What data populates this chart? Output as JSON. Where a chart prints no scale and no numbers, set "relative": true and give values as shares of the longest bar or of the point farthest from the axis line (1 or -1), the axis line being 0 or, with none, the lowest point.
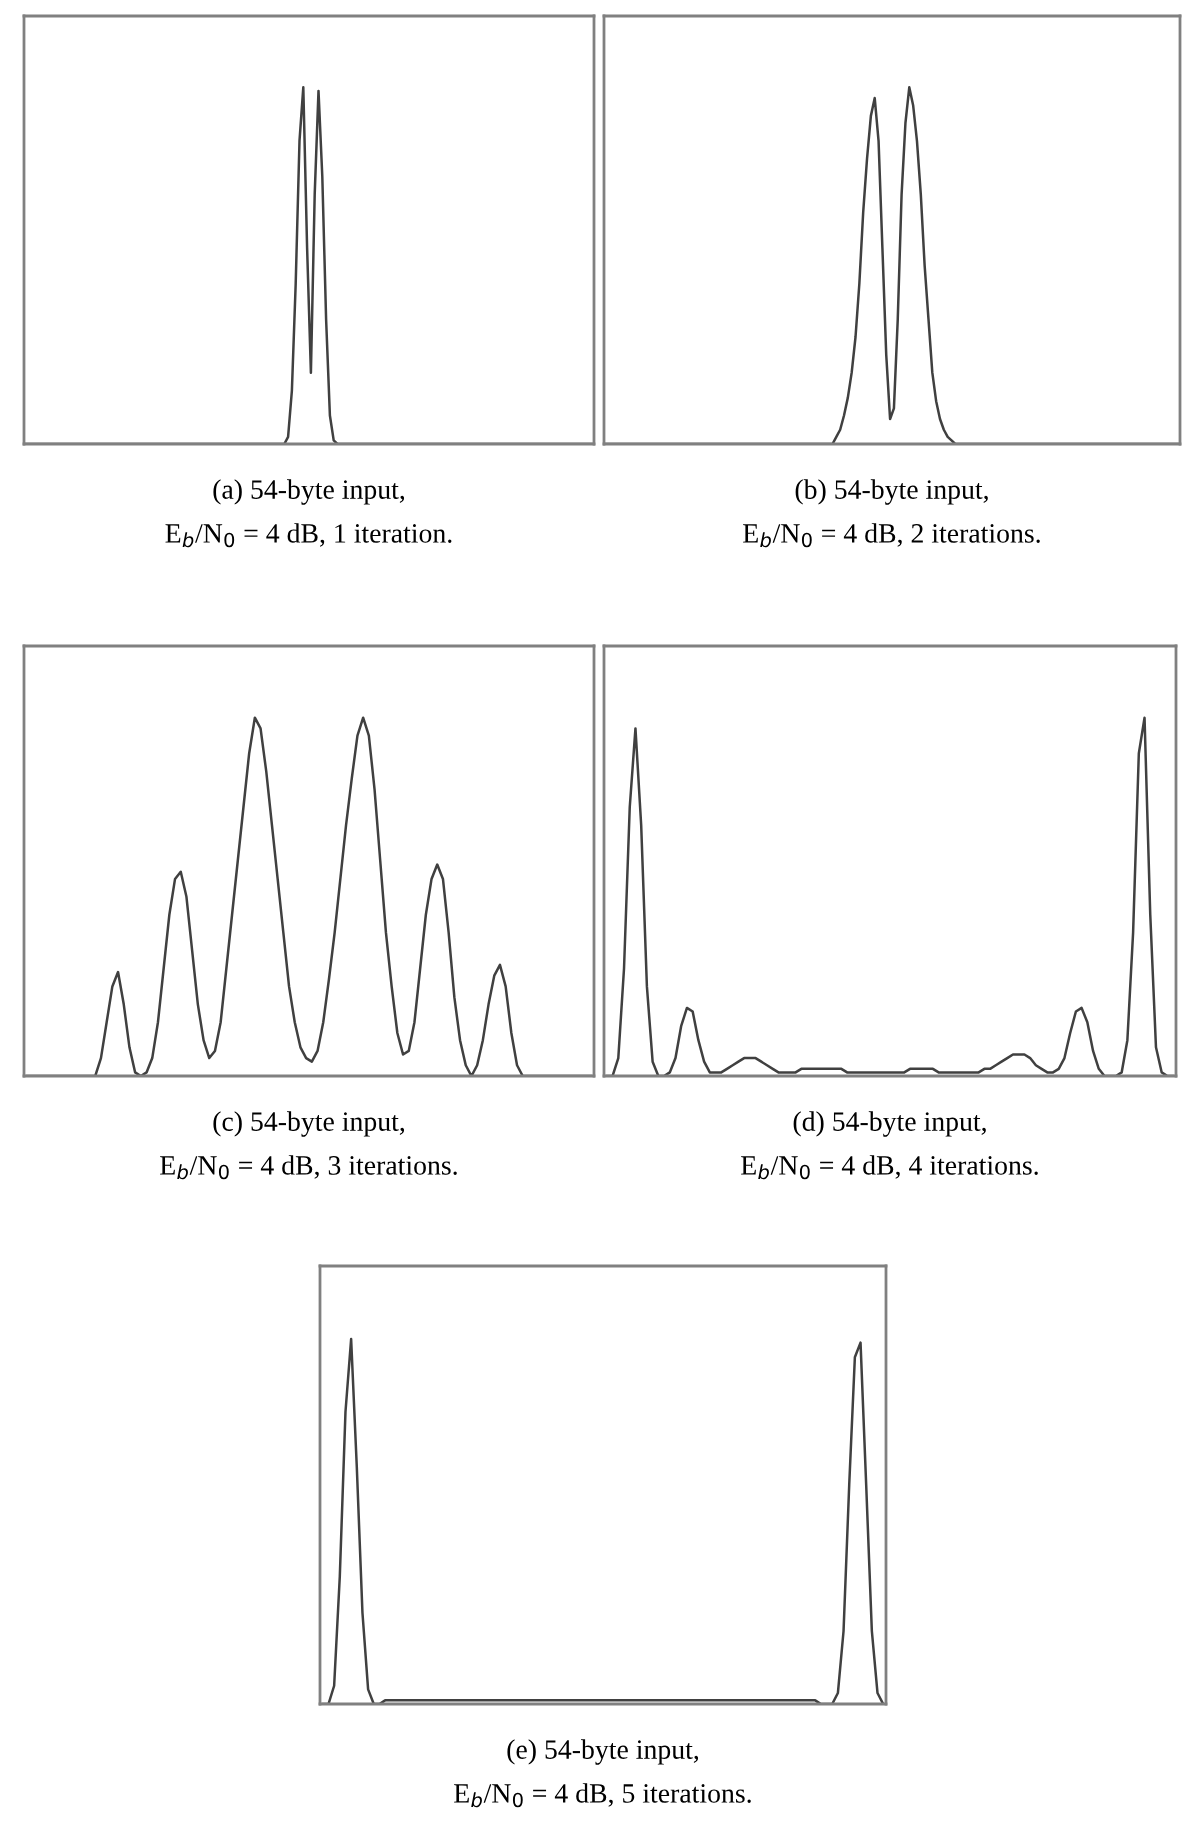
{
  "chart_data": [
    {
      "type": "line",
      "relative": true,
      "tick_labels": false,
      "title": "(a) 54-byte input,",
      "subtitle": "E$_{b}$/N$_{0}$ = 4 dB, 1 iteration.",
      "categories": [
        null,
        null,
        null,
        null,
        null,
        null,
        null,
        null,
        null,
        null,
        null,
        null,
        null,
        null,
        null,
        null,
        null,
        null,
        null,
        null,
        null,
        null,
        null,
        null,
        null,
        null,
        null,
        null,
        null,
        null,
        null,
        null,
        null,
        null,
        null,
        null,
        null,
        null,
        null,
        null,
        null,
        null,
        null,
        null,
        null,
        null,
        null,
        null,
        null,
        null,
        null,
        null,
        null,
        null,
        null,
        null,
        null,
        null,
        null,
        null,
        null,
        null,
        null,
        null,
        null,
        null,
        null,
        null,
        null,
        null,
        null,
        null,
        null,
        null,
        null,
        null,
        null,
        null,
        null,
        null,
        null,
        null,
        null,
        null,
        null,
        null,
        null,
        null,
        null,
        null,
        null,
        null,
        null,
        null,
        null,
        null,
        null,
        null,
        null,
        null,
        null,
        null,
        null,
        null,
        null,
        null,
        null,
        null,
        null,
        null,
        null,
        null,
        null,
        null,
        null,
        null,
        null,
        null,
        null,
        null,
        null,
        null,
        null,
        null,
        null,
        null,
        null,
        null,
        null,
        null,
        null,
        null,
        null,
        null,
        null,
        null,
        null,
        null,
        null,
        null,
        null,
        null,
        null,
        null,
        null,
        null,
        null,
        null,
        null,
        null
      ],
      "series": [
        {
          "color": "#404040",
          "values": [
            0,
            0,
            0,
            0,
            0,
            0,
            0,
            0,
            0,
            0,
            0,
            0,
            0,
            0,
            0,
            0,
            0,
            0,
            0,
            0,
            0,
            0,
            0,
            0,
            0,
            0,
            0,
            0,
            0,
            0,
            0,
            0,
            0,
            0,
            0,
            0,
            0,
            0,
            0,
            0,
            0,
            0,
            0,
            0,
            0,
            0,
            0,
            0,
            0,
            0,
            0,
            0,
            0,
            0,
            0,
            0,
            0,
            0,
            0,
            0,
            0,
            0,
            0,
            0,
            0,
            0,
            0,
            0,
            0,
            0.02,
            0.15,
            0.45,
            0.85,
            1.0,
            0.55,
            0.2,
            0.7,
            0.99,
            0.75,
            0.35,
            0.08,
            0.01,
            0,
            0,
            0,
            0,
            0,
            0,
            0,
            0,
            0,
            0,
            0,
            0,
            0,
            0,
            0,
            0,
            0,
            0,
            0,
            0,
            0,
            0,
            0,
            0,
            0,
            0,
            0,
            0,
            0,
            0,
            0,
            0,
            0,
            0,
            0,
            0,
            0,
            0,
            0,
            0,
            0,
            0,
            0,
            0,
            0,
            0,
            0,
            0,
            0,
            0,
            0,
            0,
            0,
            0,
            0,
            0,
            0,
            0,
            0,
            0,
            0,
            0,
            0,
            0,
            0,
            0,
            0,
            0
          ]
        }
      ]
    },
    {
      "type": "line",
      "relative": true,
      "tick_labels": false,
      "title": "(b) 54-byte input,",
      "subtitle": "E$_{b}$/N$_{0}$ = 4 dB, 2 iterations.",
      "categories": [
        null,
        null,
        null,
        null,
        null,
        null,
        null,
        null,
        null,
        null,
        null,
        null,
        null,
        null,
        null,
        null,
        null,
        null,
        null,
        null,
        null,
        null,
        null,
        null,
        null,
        null,
        null,
        null,
        null,
        null,
        null,
        null,
        null,
        null,
        null,
        null,
        null,
        null,
        null,
        null,
        null,
        null,
        null,
        null,
        null,
        null,
        null,
        null,
        null,
        null,
        null,
        null,
        null,
        null,
        null,
        null,
        null,
        null,
        null,
        null,
        null,
        null,
        null,
        null,
        null,
        null,
        null,
        null,
        null,
        null,
        null,
        null,
        null,
        null,
        null,
        null,
        null,
        null,
        null,
        null,
        null,
        null,
        null,
        null,
        null,
        null,
        null,
        null,
        null,
        null,
        null,
        null,
        null,
        null,
        null,
        null,
        null,
        null,
        null,
        null,
        null,
        null,
        null,
        null,
        null,
        null,
        null,
        null,
        null,
        null,
        null,
        null,
        null,
        null,
        null,
        null,
        null,
        null,
        null,
        null,
        null,
        null,
        null,
        null,
        null,
        null,
        null,
        null,
        null,
        null,
        null,
        null,
        null,
        null,
        null,
        null,
        null,
        null,
        null,
        null,
        null,
        null,
        null,
        null,
        null,
        null,
        null,
        null,
        null,
        null
      ],
      "series": [
        {
          "color": "#404040",
          "values": [
            0,
            0,
            0,
            0,
            0,
            0,
            0,
            0,
            0,
            0,
            0,
            0,
            0,
            0,
            0,
            0,
            0,
            0,
            0,
            0,
            0,
            0,
            0,
            0,
            0,
            0,
            0,
            0,
            0,
            0,
            0,
            0,
            0,
            0,
            0,
            0,
            0,
            0,
            0,
            0,
            0,
            0,
            0,
            0,
            0,
            0,
            0,
            0,
            0,
            0,
            0,
            0,
            0,
            0,
            0,
            0,
            0,
            0,
            0,
            0,
            0.02,
            0.04,
            0.08,
            0.13,
            0.2,
            0.3,
            0.45,
            0.65,
            0.8,
            0.92,
            0.97,
            0.85,
            0.55,
            0.25,
            0.07,
            0.1,
            0.35,
            0.7,
            0.9,
            1.0,
            0.95,
            0.85,
            0.7,
            0.5,
            0.35,
            0.2,
            0.12,
            0.07,
            0.04,
            0.02,
            0.01,
            0,
            0,
            0,
            0,
            0,
            0,
            0,
            0,
            0,
            0,
            0,
            0,
            0,
            0,
            0,
            0,
            0,
            0,
            0,
            0,
            0,
            0,
            0,
            0,
            0,
            0,
            0,
            0,
            0,
            0,
            0,
            0,
            0,
            0,
            0,
            0,
            0,
            0,
            0,
            0,
            0,
            0,
            0,
            0,
            0,
            0,
            0,
            0,
            0,
            0,
            0,
            0,
            0,
            0,
            0,
            0,
            0,
            0,
            0
          ]
        }
      ]
    },
    {
      "type": "line",
      "relative": true,
      "tick_labels": false,
      "title": "(c) 54-byte input,",
      "subtitle": "E$_{b}$/N$_{0}$ = 4 dB, 3 iterations.",
      "categories": [
        null,
        null,
        null,
        null,
        null,
        null,
        null,
        null,
        null,
        null,
        null,
        null,
        null,
        null,
        null,
        null,
        null,
        null,
        null,
        null,
        null,
        null,
        null,
        null,
        null,
        null,
        null,
        null,
        null,
        null,
        null,
        null,
        null,
        null,
        null,
        null,
        null,
        null,
        null,
        null,
        null,
        null,
        null,
        null,
        null,
        null,
        null,
        null,
        null,
        null,
        null,
        null,
        null,
        null,
        null,
        null,
        null,
        null,
        null,
        null,
        null,
        null,
        null,
        null,
        null,
        null,
        null,
        null,
        null,
        null,
        null,
        null,
        null,
        null,
        null,
        null,
        null,
        null,
        null,
        null,
        null,
        null,
        null,
        null,
        null,
        null,
        null,
        null,
        null,
        null,
        null,
        null,
        null,
        null,
        null,
        null,
        null,
        null,
        null,
        null
      ],
      "series": [
        {
          "color": "#404040",
          "values": [
            0,
            0,
            0,
            0,
            0,
            0,
            0,
            0,
            0,
            0,
            0,
            0,
            0,
            0.05,
            0.15,
            0.25,
            0.29,
            0.2,
            0.08,
            0.01,
            0,
            0.01,
            0.05,
            0.15,
            0.3,
            0.45,
            0.55,
            0.57,
            0.5,
            0.35,
            0.2,
            0.1,
            0.05,
            0.07,
            0.15,
            0.3,
            0.45,
            0.6,
            0.75,
            0.9,
            1.0,
            0.97,
            0.85,
            0.7,
            0.55,
            0.4,
            0.25,
            0.15,
            0.08,
            0.05,
            0.04,
            0.07,
            0.15,
            0.27,
            0.4,
            0.55,
            0.7,
            0.83,
            0.95,
            1.0,
            0.95,
            0.8,
            0.6,
            0.4,
            0.25,
            0.12,
            0.06,
            0.07,
            0.15,
            0.3,
            0.45,
            0.55,
            0.59,
            0.55,
            0.4,
            0.22,
            0.1,
            0.03,
            0,
            0.03,
            0.1,
            0.2,
            0.28,
            0.31,
            0.25,
            0.12,
            0.03,
            0,
            0,
            0,
            0,
            0,
            0,
            0,
            0,
            0,
            0,
            0,
            0,
            0
          ]
        }
      ]
    },
    {
      "type": "line",
      "relative": true,
      "tick_labels": false,
      "title": "(d) 54-byte input,",
      "subtitle": "E$_{b}$/N$_{0}$ = 4 dB, 4 iterations.",
      "categories": [
        null,
        null,
        null,
        null,
        null,
        null,
        null,
        null,
        null,
        null,
        null,
        null,
        null,
        null,
        null,
        null,
        null,
        null,
        null,
        null,
        null,
        null,
        null,
        null,
        null,
        null,
        null,
        null,
        null,
        null,
        null,
        null,
        null,
        null,
        null,
        null,
        null,
        null,
        null,
        null,
        null,
        null,
        null,
        null,
        null,
        null,
        null,
        null,
        null,
        null,
        null,
        null,
        null,
        null,
        null,
        null,
        null,
        null,
        null,
        null,
        null,
        null,
        null,
        null,
        null,
        null,
        null,
        null,
        null,
        null,
        null,
        null,
        null,
        null,
        null,
        null,
        null,
        null,
        null,
        null,
        null,
        null,
        null,
        null,
        null,
        null,
        null,
        null,
        null,
        null,
        null,
        null,
        null,
        null,
        null,
        null,
        null,
        null,
        null,
        null
      ],
      "series": [
        {
          "color": "#404040",
          "values": [
            0,
            0,
            0.05,
            0.3,
            0.75,
            0.97,
            0.7,
            0.25,
            0.04,
            0,
            0,
            0.01,
            0.05,
            0.14,
            0.19,
            0.18,
            0.1,
            0.04,
            0.01,
            0.01,
            0.01,
            0.02,
            0.03,
            0.04,
            0.05,
            0.05,
            0.05,
            0.04,
            0.03,
            0.02,
            0.01,
            0.01,
            0.01,
            0.01,
            0.02,
            0.02,
            0.02,
            0.02,
            0.02,
            0.02,
            0.02,
            0.02,
            0.01,
            0.01,
            0.01,
            0.01,
            0.01,
            0.01,
            0.01,
            0.01,
            0.01,
            0.01,
            0.01,
            0.02,
            0.02,
            0.02,
            0.02,
            0.02,
            0.01,
            0.01,
            0.01,
            0.01,
            0.01,
            0.01,
            0.01,
            0.01,
            0.02,
            0.02,
            0.03,
            0.04,
            0.05,
            0.06,
            0.06,
            0.06,
            0.05,
            0.03,
            0.02,
            0.01,
            0.01,
            0.02,
            0.05,
            0.12,
            0.18,
            0.19,
            0.15,
            0.07,
            0.02,
            0,
            0,
            0,
            0.01,
            0.1,
            0.4,
            0.9,
            1.0,
            0.45,
            0.08,
            0.01,
            0,
            0
          ]
        }
      ]
    },
    {
      "type": "line",
      "relative": true,
      "tick_labels": false,
      "title": "(e) 54-byte input,",
      "subtitle": "E$_{b}$/N$_{0}$ = 4 dB, 5 iterations.",
      "categories": [
        null,
        null,
        null,
        null,
        null,
        null,
        null,
        null,
        null,
        null,
        null,
        null,
        null,
        null,
        null,
        null,
        null,
        null,
        null,
        null,
        null,
        null,
        null,
        null,
        null,
        null,
        null,
        null,
        null,
        null,
        null,
        null,
        null,
        null,
        null,
        null,
        null,
        null,
        null,
        null,
        null,
        null,
        null,
        null,
        null,
        null,
        null,
        null,
        null,
        null,
        null,
        null,
        null,
        null,
        null,
        null,
        null,
        null,
        null,
        null,
        null,
        null,
        null,
        null,
        null,
        null,
        null,
        null,
        null,
        null,
        null,
        null,
        null,
        null,
        null,
        null,
        null,
        null,
        null,
        null,
        null,
        null,
        null,
        null,
        null,
        null,
        null,
        null,
        null,
        null,
        null,
        null,
        null,
        null,
        null,
        null,
        null,
        null,
        null,
        null
      ],
      "series": [
        {
          "color": "#404040",
          "values": [
            0,
            0,
            0.05,
            0.35,
            0.8,
            1.0,
            0.65,
            0.25,
            0.04,
            0,
            0,
            0.01,
            0.01,
            0.01,
            0.01,
            0.01,
            0.01,
            0.01,
            0.01,
            0.01,
            0.01,
            0.01,
            0.01,
            0.01,
            0.01,
            0.01,
            0.01,
            0.01,
            0.01,
            0.01,
            0.01,
            0.01,
            0.01,
            0.01,
            0.01,
            0.01,
            0.01,
            0.01,
            0.01,
            0.01,
            0.01,
            0.01,
            0.01,
            0.01,
            0.01,
            0.01,
            0.01,
            0.01,
            0.01,
            0.01,
            0.01,
            0.01,
            0.01,
            0.01,
            0.01,
            0.01,
            0.01,
            0.01,
            0.01,
            0.01,
            0.01,
            0.01,
            0.01,
            0.01,
            0.01,
            0.01,
            0.01,
            0.01,
            0.01,
            0.01,
            0.01,
            0.01,
            0.01,
            0.01,
            0.01,
            0.01,
            0.01,
            0.01,
            0.01,
            0.01,
            0.01,
            0.01,
            0.01,
            0.01,
            0.01,
            0.01,
            0.01,
            0.01,
            0,
            0,
            0,
            0.03,
            0.2,
            0.6,
            0.95,
            0.99,
            0.6,
            0.2,
            0.03,
            0
          ]
        }
      ]
    }
  ]
}
